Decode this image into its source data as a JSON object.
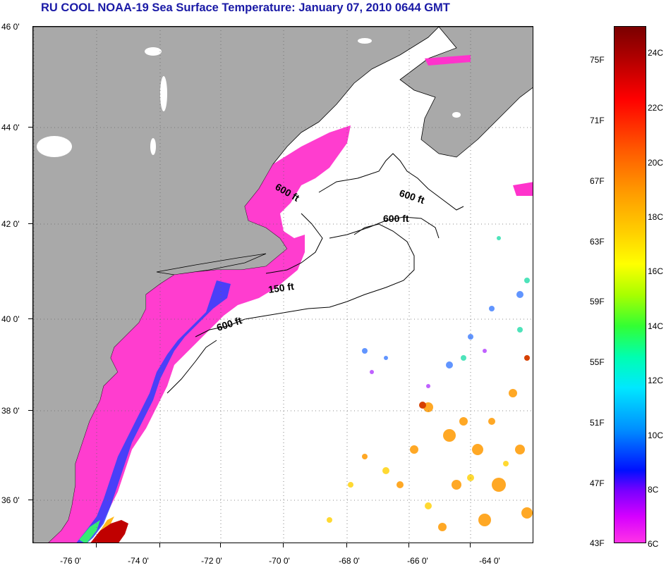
{
  "title": "RU COOL  NOAA-19  Sea Surface Temperature:  January 07, 2010 0644 GMT",
  "latitude_labels": [
    "46 0'",
    "44 0'",
    "42 0'",
    "40 0'",
    "38 0'",
    "36 0'"
  ],
  "longitude_labels": [
    "-76 0'",
    "-74 0'",
    "-72 0'",
    "-70 0'",
    "-68 0'",
    "-66 0'",
    "-64 0'"
  ],
  "contour_labels": [
    "600 ft",
    "600 ft",
    "600 ft",
    "150 ft",
    "600 ft"
  ],
  "colorbar": {
    "fahrenheit": [
      "75F",
      "71F",
      "67F",
      "63F",
      "59F",
      "55F",
      "51F",
      "47F",
      "43F"
    ],
    "celsius": [
      "24C",
      "22C",
      "20C",
      "18C",
      "16C",
      "14C",
      "12C",
      "10C",
      "8C",
      "6C"
    ]
  },
  "colors": {
    "land": "#a9a9a9",
    "ocean_no_data": "#ffffff",
    "cold_shelf": "#ff33cc",
    "title": "#1a1aa6",
    "gulf_stream": "#c00000"
  }
}
